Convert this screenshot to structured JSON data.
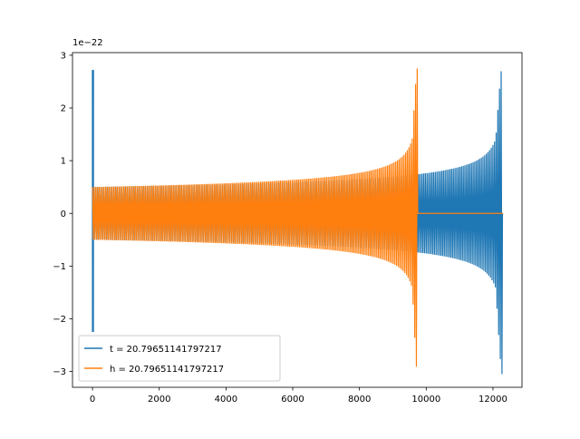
{
  "chart_data": {
    "type": "line",
    "title": "",
    "xlabel": "",
    "ylabel": "",
    "y_offset_label": "1e−22",
    "xlim": [
      -600,
      12870
    ],
    "ylim": [
      -3.3,
      3.05
    ],
    "x_ticks": [
      0,
      2000,
      4000,
      6000,
      8000,
      10000,
      12000
    ],
    "x_tick_labels": [
      "0",
      "2000",
      "4000",
      "6000",
      "8000",
      "10000",
      "12000"
    ],
    "y_ticks": [
      -3,
      -2,
      -1,
      0,
      1,
      2,
      3
    ],
    "y_tick_labels": [
      "−3",
      "−2",
      "−1",
      "0",
      "1",
      "2",
      "3"
    ],
    "grid": false,
    "legend_position": "lower-left",
    "series": [
      {
        "name": "t = 20.79651141797217",
        "color": "#1f77b4",
        "kind": "chirp",
        "x_start": 0,
        "x_merge": 12270,
        "x_end": 12300,
        "start_amplitude": 0.5,
        "peak_max": 2.75,
        "peak_min": -3.05,
        "post_value": 0,
        "preburst": {
          "x": [
            0,
            25
          ],
          "max": 2.72,
          "min": -2.25
        }
      },
      {
        "name": "h = 20.79651141797217",
        "color": "#ff7f0e",
        "kind": "chirp",
        "x_start": 0,
        "x_merge": 9730,
        "x_end": 12300,
        "start_amplitude": 0.5,
        "peak_max": 2.75,
        "peak_min": -3.05,
        "post_value": 0
      }
    ]
  }
}
